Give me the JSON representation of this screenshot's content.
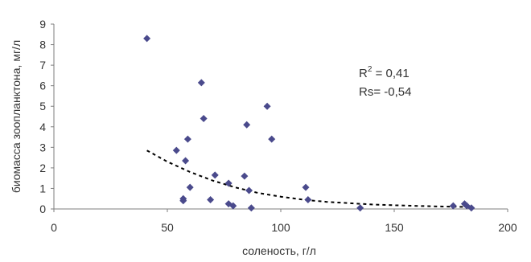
{
  "chart_data": {
    "type": "scatter",
    "xlabel": "соленость, г/л",
    "ylabel": "биомасса зоопланктона, мг/л",
    "xlim": [
      0,
      200
    ],
    "ylim": [
      0,
      9
    ],
    "x_ticks": [
      "0",
      "50",
      "100",
      "150",
      "200"
    ],
    "y_ticks": [
      "0",
      "1",
      "2",
      "3",
      "4",
      "5",
      "6",
      "7",
      "8",
      "9"
    ],
    "grid": false,
    "legend": "none",
    "points": [
      {
        "x": 41,
        "y": 8.3
      },
      {
        "x": 54,
        "y": 2.85
      },
      {
        "x": 57,
        "y": 0.5
      },
      {
        "x": 57,
        "y": 0.4
      },
      {
        "x": 58,
        "y": 2.35
      },
      {
        "x": 59,
        "y": 3.4
      },
      {
        "x": 60,
        "y": 1.05
      },
      {
        "x": 65,
        "y": 6.15
      },
      {
        "x": 66,
        "y": 4.4
      },
      {
        "x": 69,
        "y": 0.45
      },
      {
        "x": 71,
        "y": 1.65
      },
      {
        "x": 77,
        "y": 1.25
      },
      {
        "x": 77,
        "y": 0.25
      },
      {
        "x": 79,
        "y": 0.15
      },
      {
        "x": 84,
        "y": 1.6
      },
      {
        "x": 85,
        "y": 4.1
      },
      {
        "x": 86,
        "y": 0.9
      },
      {
        "x": 87,
        "y": 0.05
      },
      {
        "x": 94,
        "y": 5.0
      },
      {
        "x": 96,
        "y": 3.4
      },
      {
        "x": 111,
        "y": 1.05
      },
      {
        "x": 112,
        "y": 0.45
      },
      {
        "x": 135,
        "y": 0.05
      },
      {
        "x": 176,
        "y": 0.15
      },
      {
        "x": 181,
        "y": 0.25
      },
      {
        "x": 182,
        "y": 0.15
      },
      {
        "x": 184,
        "y": 0.05
      }
    ],
    "trendline": {
      "style": "dashed",
      "x": [
        41,
        50,
        60,
        70,
        80,
        90,
        100,
        110,
        120,
        130,
        140,
        150,
        160,
        170,
        180,
        184
      ],
      "y": [
        2.85,
        2.3,
        1.8,
        1.38,
        1.05,
        0.78,
        0.6,
        0.45,
        0.35,
        0.28,
        0.22,
        0.18,
        0.15,
        0.12,
        0.1,
        0.1
      ]
    },
    "annotations": {
      "r2_prefix": "R",
      "r2_sup": "2",
      "r2_suffix": " = 0,41",
      "rs": "Rs= -0,54"
    },
    "colors": {
      "marker": "#4a4a8c",
      "axis": "#7f7f7f",
      "text": "#333333",
      "trendline": "#000000"
    }
  }
}
